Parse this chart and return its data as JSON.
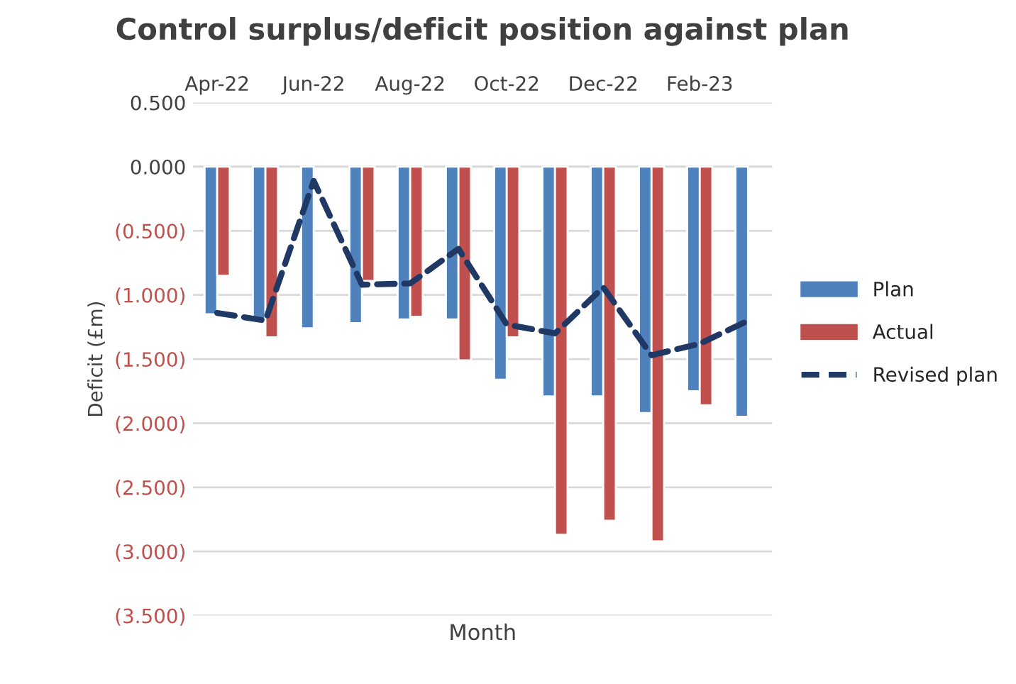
{
  "chart_data": {
    "type": "bar",
    "title": "Control surplus/deficit position against plan",
    "xlabel": "Month",
    "ylabel": "Deficit (£m)",
    "categories": [
      "Apr-22",
      null,
      "Jun-22",
      null,
      "Aug-22",
      null,
      "Oct-22",
      null,
      "Dec-22",
      null,
      "Feb-23",
      null
    ],
    "series": [
      {
        "name": "Plan",
        "color": "#4f81bd",
        "values": [
          -1.15,
          -1.2,
          -1.26,
          -1.22,
          -1.19,
          -1.19,
          -1.66,
          -1.79,
          -1.79,
          -1.92,
          -1.75,
          -1.95
        ]
      },
      {
        "name": "Actual",
        "color": "#c0504d",
        "values": [
          -0.85,
          -1.33,
          null,
          -0.89,
          -1.17,
          -1.51,
          -1.33,
          -2.87,
          -2.76,
          -2.92,
          -1.86,
          null
        ]
      },
      {
        "name": "Revised plan",
        "type": "line",
        "line_style": "dashed",
        "color": "#1f3864",
        "values": [
          -1.14,
          -1.2,
          -0.11,
          -0.92,
          -0.91,
          -0.64,
          -1.23,
          -1.3,
          -0.94,
          -1.47,
          -1.38,
          -1.2
        ]
      }
    ],
    "ylim": [
      -3.5,
      0.5
    ],
    "yticks": [
      {
        "value": 0.5,
        "label": "0.500"
      },
      {
        "value": 0.0,
        "label": "0.000"
      },
      {
        "value": -0.5,
        "label": "(0.500)"
      },
      {
        "value": -1.0,
        "label": "(1.000)"
      },
      {
        "value": -1.5,
        "label": "(1.500)"
      },
      {
        "value": -2.0,
        "label": "(2.000)"
      },
      {
        "value": -2.5,
        "label": "(2.500)"
      },
      {
        "value": -3.0,
        "label": "(3.000)"
      },
      {
        "value": -3.5,
        "label": "(3.500)"
      }
    ],
    "grid": "y",
    "legend": "right"
  }
}
